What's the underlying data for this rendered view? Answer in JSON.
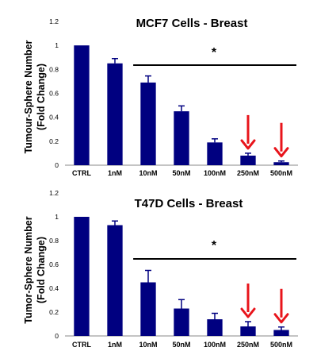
{
  "chart_data": [
    {
      "type": "bar",
      "title": "MCF7 Cells - Breast",
      "ylabel_line1": "Tumour-Sphere Number",
      "ylabel_line2": "(Fold Change)",
      "categories": [
        "CTRL",
        "1nM",
        "10nM",
        "50nM",
        "100nM",
        "250nM",
        "500nM"
      ],
      "values": [
        1.0,
        0.85,
        0.69,
        0.45,
        0.19,
        0.08,
        0.025
      ],
      "errors": [
        0,
        0.04,
        0.055,
        0.045,
        0.03,
        0.02,
        0.01
      ],
      "ylim": [
        0,
        1.2
      ],
      "yticks": [
        "0",
        "0.2",
        "0.4",
        "0.6",
        "0.8",
        "1",
        "1.2"
      ],
      "significance_marker": "*",
      "significance_from": "10nM",
      "arrows_on": [
        "250nM",
        "500nM"
      ],
      "bar_color": "#000080",
      "arrow_color": "#e8141b"
    },
    {
      "type": "bar",
      "title": "T47D Cells - Breast",
      "ylabel_line1": "Tumor-Sphere Number",
      "ylabel_line2": "(Fold Change)",
      "categories": [
        "CTRL",
        "1nM",
        "10nM",
        "50nM",
        "100nM",
        "250nM",
        "500nM"
      ],
      "values": [
        1.0,
        0.93,
        0.45,
        0.23,
        0.14,
        0.08,
        0.05
      ],
      "errors": [
        0,
        0.035,
        0.1,
        0.075,
        0.05,
        0.04,
        0.025
      ],
      "ylim": [
        0,
        1.2
      ],
      "yticks": [
        "0",
        "0.2",
        "0.4",
        "0.6",
        "0.8",
        "1",
        "1.2"
      ],
      "significance_marker": "*",
      "significance_from": "10nM",
      "arrows_on": [
        "250nM",
        "500nM"
      ],
      "bar_color": "#000080",
      "arrow_color": "#e8141b"
    }
  ]
}
